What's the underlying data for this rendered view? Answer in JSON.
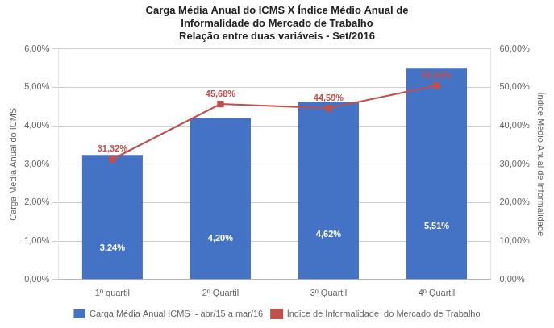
{
  "chart_data": {
    "type": "bar",
    "title": "Carga Média Anual do ICMS X Índice Médio Anual de\nInformalidade do Mercado de Trabalho\nRelação entre duas variáveis - Set/2016",
    "categories": [
      "1º quartil",
      "2º Quartil",
      "3º Quartil",
      "4º Quartil"
    ],
    "series": [
      {
        "name": "Carga Média Anual ICMS  - abr/15 a mar/16",
        "type": "bar",
        "color": "#4472C4",
        "values": [
          3.24,
          4.2,
          4.62,
          5.51
        ],
        "value_labels": [
          "3,24%",
          "4,20%",
          "4,62%",
          "5,51%"
        ]
      },
      {
        "name": "Índice de Informalidade  do Mercado de Trabalho",
        "type": "line",
        "axis": "y2",
        "color": "#C0504D",
        "marker": "square",
        "values": [
          31.32,
          45.68,
          44.59,
          50.5
        ],
        "value_labels": [
          "31,32%",
          "45,68%",
          "44,59%",
          "50,50%"
        ]
      }
    ],
    "ylabel": "Carga Média Anual do ICMS",
    "y2label": "Índice Médio Anual de Informalidade",
    "ylim": [
      0,
      6.0
    ],
    "yticks": [
      {
        "value": 0,
        "label": "0,00%"
      },
      {
        "value": 1.0,
        "label": "1,00%"
      },
      {
        "value": 2.0,
        "label": "2,00%"
      },
      {
        "value": 3.0,
        "label": "3,00%"
      },
      {
        "value": 4.0,
        "label": "4,00%"
      },
      {
        "value": 5.0,
        "label": "5,00%"
      },
      {
        "value": 6.0,
        "label": "6,00%"
      }
    ],
    "y2lim": [
      0,
      60.0
    ],
    "y2ticks": [
      {
        "value": 0,
        "label": "0,00%"
      },
      {
        "value": 10.0,
        "label": "10,00%"
      },
      {
        "value": 20.0,
        "label": "20,00%"
      },
      {
        "value": 30.0,
        "label": "30,00%"
      },
      {
        "value": 40.0,
        "label": "40,00%"
      },
      {
        "value": 50.0,
        "label": "50,00%"
      },
      {
        "value": 60.0,
        "label": "60,00%"
      }
    ],
    "grid": true,
    "legend": "bottom",
    "data_labels": true
  }
}
